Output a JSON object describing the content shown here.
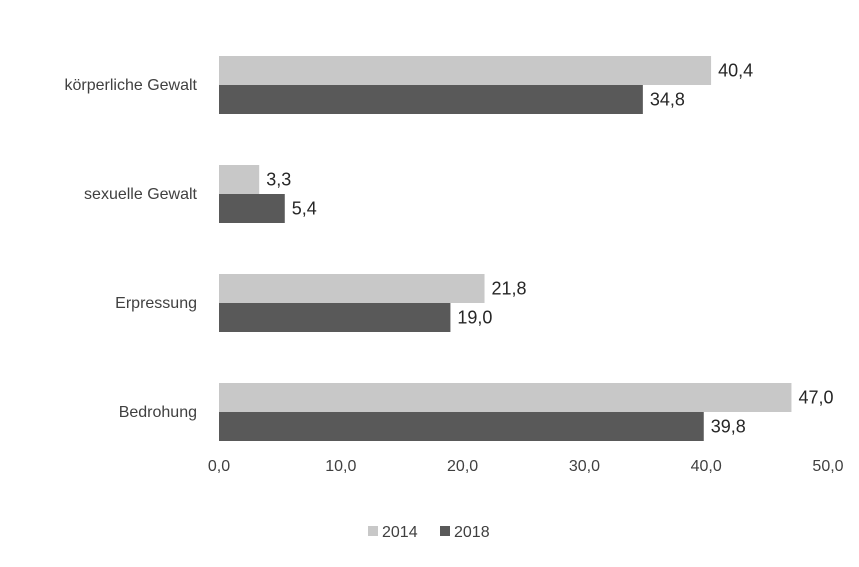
{
  "chart_data": {
    "type": "bar",
    "orientation": "horizontal",
    "categories": [
      "körperliche Gewalt",
      "sexuelle Gewalt",
      "Erpressung",
      "Bedrohung"
    ],
    "series": [
      {
        "name": "2014",
        "values": [
          40.4,
          3.3,
          21.8,
          47.0
        ],
        "labels": [
          "40,4",
          "3,3",
          "21,8",
          "47,0"
        ],
        "color": "#c8c8c8"
      },
      {
        "name": "2018",
        "values": [
          34.8,
          5.4,
          19.0,
          39.8
        ],
        "labels": [
          "34,8",
          "5,4",
          "19,0",
          "39,8"
        ],
        "color": "#595959"
      }
    ],
    "xlim": [
      0,
      50
    ],
    "xticks": [
      0,
      10,
      20,
      30,
      40,
      50
    ],
    "xtick_labels": [
      "0,0",
      "10,0",
      "20,0",
      "30,0",
      "40,0",
      "50,0"
    ],
    "title": "",
    "xlabel": "",
    "ylabel": "",
    "grid": false,
    "legend": "bottom"
  }
}
